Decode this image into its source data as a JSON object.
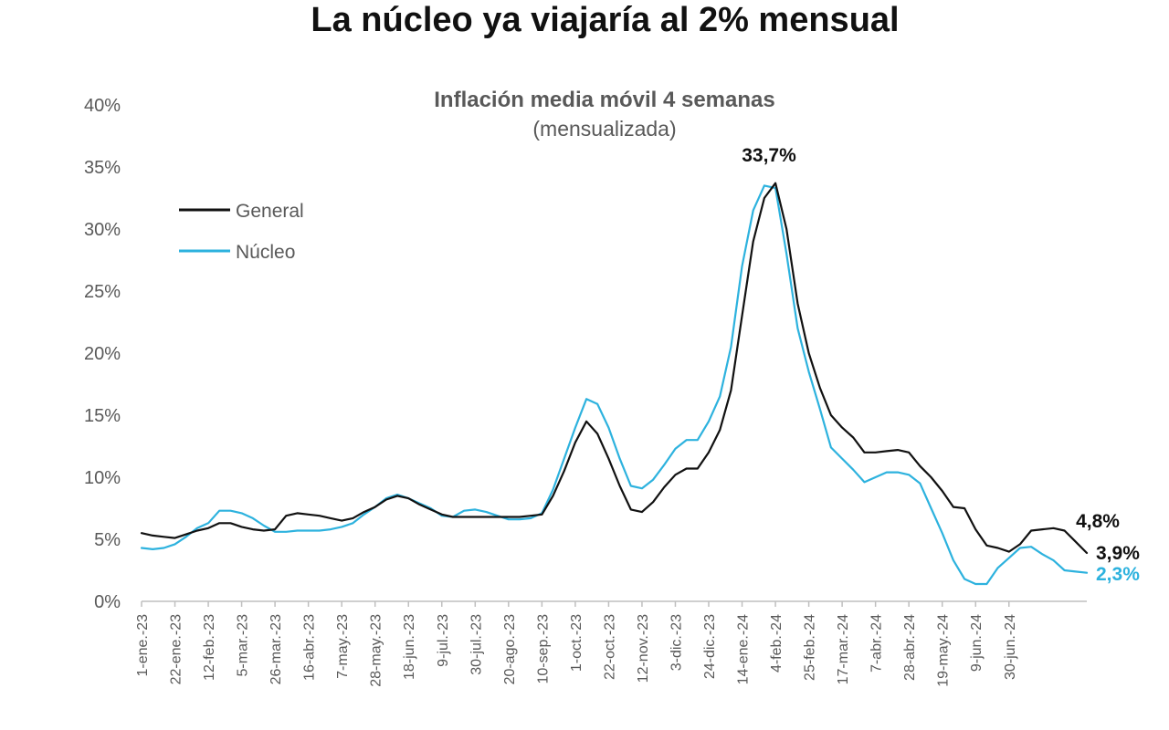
{
  "page": {
    "title": "La núcleo ya viajaría al 2% mensual"
  },
  "chart_data": {
    "type": "line",
    "title": "Inflación media móvil 4 semanas",
    "subtitle": "(mensualizada)",
    "xlabel": "",
    "ylabel": "",
    "ylim": [
      0,
      40
    ],
    "yticks": [
      "0%",
      "5%",
      "10%",
      "15%",
      "20%",
      "25%",
      "30%",
      "35%",
      "40%"
    ],
    "ytick_values": [
      0,
      5,
      10,
      15,
      20,
      25,
      30,
      35,
      40
    ],
    "grid": false,
    "legend_position": "top-left",
    "xtick_labels": [
      "1-ene.-23",
      "22-ene.-23",
      "12-feb.-23",
      "5-mar.-23",
      "26-mar.-23",
      "16-abr.-23",
      "7-may.-23",
      "28-may.-23",
      "18-jun.-23",
      "9-jul.-23",
      "30-jul.-23",
      "20-ago.-23",
      "10-sep.-23",
      "1-oct.-23",
      "22-oct.-23",
      "12-nov.-23",
      "3-dic.-23",
      "24-dic.-23",
      "14-ene.-24",
      "4-feb.-24",
      "25-feb.-24",
      "17-mar.-24",
      "7-abr.-24",
      "28-abr.-24",
      "19-may.-24",
      "9-jun.-24",
      "30-jun.-24"
    ],
    "annotations": [
      {
        "text": "33,7%",
        "series": "General",
        "index": 54
      },
      {
        "text": "4,8%",
        "series": "General",
        "index": 80
      },
      {
        "text": "3,9%",
        "series": "General",
        "index": 83
      },
      {
        "text": "2,3%",
        "series": "Núcleo",
        "index": 83
      }
    ],
    "series": [
      {
        "name": "General",
        "color": "#111111",
        "values": [
          5.5,
          5.3,
          5.2,
          5.1,
          5.4,
          5.7,
          5.9,
          6.3,
          6.3,
          6.0,
          5.8,
          5.7,
          5.8,
          6.9,
          7.1,
          7.0,
          6.9,
          6.7,
          6.5,
          6.7,
          7.2,
          7.6,
          8.2,
          8.5,
          8.3,
          7.8,
          7.4,
          7.0,
          6.8,
          6.8,
          6.8,
          6.8,
          6.8,
          6.8,
          6.8,
          6.9,
          7.0,
          8.5,
          10.5,
          12.8,
          14.5,
          13.5,
          11.5,
          9.3,
          7.4,
          7.2,
          8.0,
          9.2,
          10.2,
          10.7,
          10.7,
          12.0,
          13.8,
          17.0,
          23.0,
          29.0,
          32.5,
          33.7,
          30.0,
          24.0,
          20.0,
          17.2,
          15.0,
          14.0,
          13.2,
          12.0,
          12.0,
          12.1,
          12.2,
          12.0,
          10.9,
          10.0,
          8.9,
          7.6,
          7.5,
          5.8,
          4.5,
          4.3,
          4.0,
          4.6,
          5.7,
          5.8,
          5.9,
          5.7,
          4.8,
          3.9
        ],
        "labeled_point_index": 57
      },
      {
        "name": "Núcleo",
        "color": "#2db2de",
        "values": [
          4.3,
          4.2,
          4.3,
          4.6,
          5.2,
          5.9,
          6.3,
          7.3,
          7.3,
          7.1,
          6.7,
          6.1,
          5.6,
          5.6,
          5.7,
          5.7,
          5.7,
          5.8,
          6.0,
          6.3,
          7.0,
          7.6,
          8.3,
          8.6,
          8.3,
          7.9,
          7.5,
          6.9,
          6.8,
          7.3,
          7.4,
          7.2,
          6.9,
          6.6,
          6.6,
          6.7,
          7.1,
          9.0,
          11.5,
          14.0,
          16.3,
          15.9,
          14.0,
          11.5,
          9.3,
          9.1,
          9.8,
          11.0,
          12.3,
          13.0,
          13.0,
          14.5,
          16.5,
          20.5,
          27.0,
          31.5,
          33.5,
          33.3,
          28.0,
          22.0,
          18.5,
          15.5,
          12.4,
          11.5,
          10.6,
          9.6,
          10.0,
          10.4,
          10.4,
          10.2,
          9.5,
          7.5,
          5.5,
          3.3,
          1.8,
          1.4,
          1.4,
          2.7,
          3.5,
          4.3,
          4.4,
          3.8,
          3.3,
          2.5,
          2.4,
          2.3
        ]
      }
    ]
  },
  "style": {
    "axis_color": "#bfbfbf",
    "tick_text_color": "#595959",
    "title_color": "#595959",
    "legend_text_color": "#595959",
    "general_color": "#111111",
    "nucleo_color": "#2db2de"
  }
}
